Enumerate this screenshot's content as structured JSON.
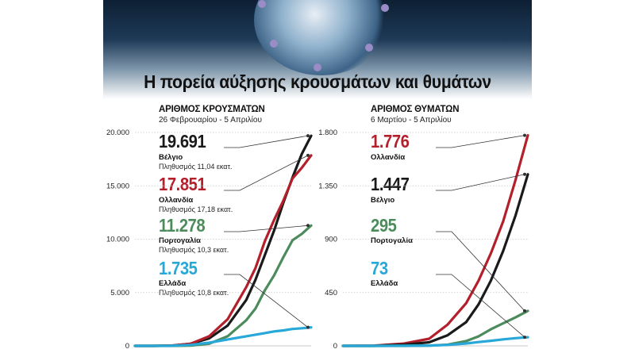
{
  "title": "Η πορεία αύξησης κρουσμάτων και θυμάτων",
  "colors": {
    "belgium": "#1a1a1a",
    "netherlands": "#b3202c",
    "portugal": "#4c8c5c",
    "greece": "#27a8d8",
    "grid": "#c8c8c8"
  },
  "chart_data": [
    {
      "type": "line",
      "title": "ΑΡΙΘΜΟΣ ΚΡΟΥΣΜΑΤΩΝ",
      "subtitle": "26 Φεβρουαρίου - 5 Απριλίου",
      "ylim": [
        0,
        20000
      ],
      "yticks": [
        0,
        5000,
        10000,
        15000,
        20000
      ],
      "ytick_labels": [
        "0",
        "5.000",
        "10.000",
        "15.000",
        "20.000"
      ],
      "x": [
        0,
        4,
        8,
        12,
        16,
        20,
        24,
        26,
        28,
        30,
        32,
        34,
        36,
        38
      ],
      "series": [
        {
          "name": "Βέλγιο",
          "color_key": "belgium",
          "label_value": "19.691",
          "population": "Πληθυσμός 11,04 εκατ.",
          "values": [
            0,
            0,
            30,
            200,
            700,
            1900,
            4300,
            6200,
            8500,
            10800,
            13400,
            15800,
            18000,
            19691
          ]
        },
        {
          "name": "Ολλανδία",
          "color_key": "netherlands",
          "label_value": "17.851",
          "population": "Πληθυσμός 17,18 εκατ.",
          "values": [
            0,
            0,
            20,
            200,
            900,
            2500,
            5500,
            7300,
            9800,
            11800,
            13600,
            15700,
            16700,
            17851
          ]
        },
        {
          "name": "Πορτογαλία",
          "color_key": "portugal",
          "label_value": "11.278",
          "population": "Πληθυσμός 10,3 εκατ.",
          "values": [
            0,
            0,
            0,
            20,
            200,
            900,
            2400,
            3500,
            5200,
            6600,
            8300,
            9900,
            10500,
            11278
          ]
        },
        {
          "name": "Ελλάδα",
          "color_key": "greece",
          "label_value": "1.735",
          "population": "Πληθυσμός 10,8 εκατ.",
          "values": [
            0,
            0,
            10,
            90,
            300,
            600,
            900,
            1050,
            1200,
            1350,
            1450,
            1580,
            1650,
            1735
          ]
        }
      ]
    },
    {
      "type": "line",
      "title": "ΑΡΙΘΜΟΣ ΘΥΜΑΤΩΝ",
      "subtitle": "6 Μαρτίου - 5 Απριλίου",
      "ylim": [
        0,
        1800
      ],
      "yticks": [
        0,
        450,
        900,
        1350,
        1800
      ],
      "ytick_labels": [
        "0",
        "450",
        "900",
        "1.350",
        "1.800"
      ],
      "x": [
        0,
        5,
        10,
        14,
        17,
        20,
        22,
        24,
        26,
        28,
        30
      ],
      "series": [
        {
          "name": "Ολλανδία",
          "color_key": "netherlands",
          "label_value": "1.776",
          "population": "",
          "values": [
            0,
            2,
            20,
            60,
            180,
            360,
            550,
            780,
            1050,
            1400,
            1776
          ]
        },
        {
          "name": "Βέλγιο",
          "color_key": "belgium",
          "label_value": "1.447",
          "population": "",
          "values": [
            0,
            0,
            10,
            30,
            90,
            200,
            350,
            550,
            800,
            1100,
            1447
          ]
        },
        {
          "name": "Πορτογαλία",
          "color_key": "portugal",
          "label_value": "295",
          "population": "",
          "values": [
            0,
            0,
            0,
            2,
            10,
            40,
            80,
            140,
            190,
            240,
            295
          ]
        },
        {
          "name": "Ελλάδα",
          "color_key": "greece",
          "label_value": "73",
          "population": "",
          "values": [
            0,
            0,
            1,
            3,
            8,
            20,
            32,
            43,
            55,
            65,
            73
          ]
        }
      ]
    }
  ]
}
